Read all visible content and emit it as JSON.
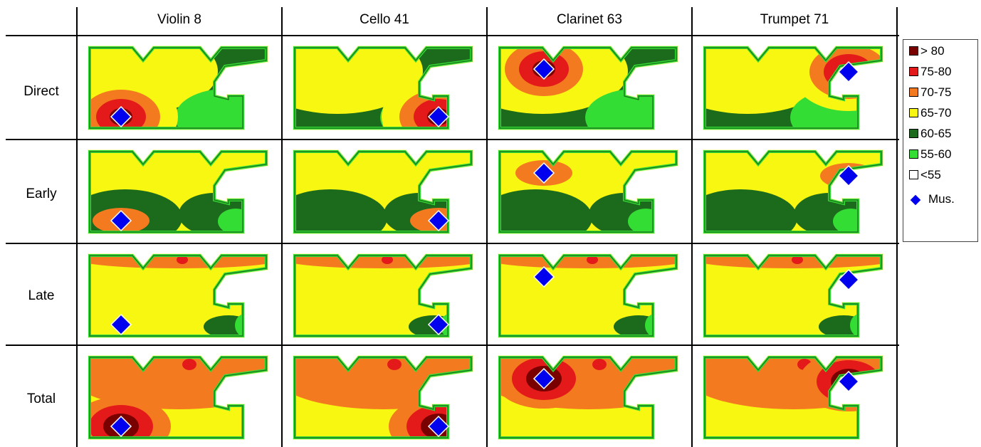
{
  "chart_data": {
    "type": "heatmap",
    "columns": [
      "Violin 8",
      "Cello 41",
      "Clarinet 63",
      "Trumpet 71"
    ],
    "rows": [
      "Direct",
      "Early",
      "Late",
      "Total"
    ],
    "legend": [
      {
        "label": "> 80",
        "color": "#7a0000"
      },
      {
        "label": "75-80",
        "color": "#e41a1a"
      },
      {
        "label": "70-75",
        "color": "#f47a20"
      },
      {
        "label": "65-70",
        "color": "#f7f711"
      },
      {
        "label": "60-65",
        "color": "#1c6a1c"
      },
      {
        "label": "55-60",
        "color": "#33dd33"
      },
      {
        "label": "<55",
        "color": "#ffffff"
      }
    ],
    "marker_label": "Mus.",
    "marker_color": "#0000ee",
    "musician_position": {
      "Violin 8": "front-left",
      "Cello 41": "front-right",
      "Clarinet 63": "rear-center",
      "Trumpet 71": "rear-right"
    }
  }
}
